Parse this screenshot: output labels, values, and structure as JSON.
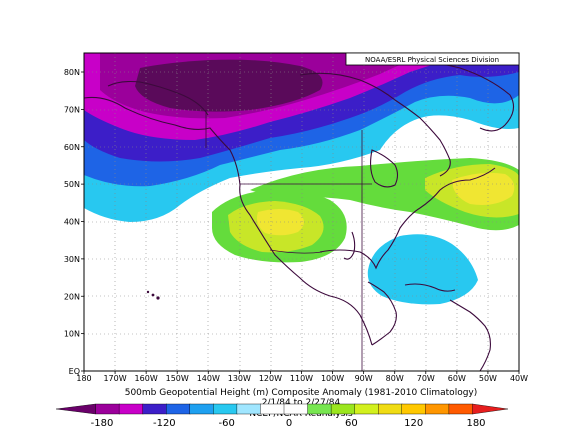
{
  "credit": "NOAA/ESRL Physical Sciences Division",
  "title_line1": "500mb Geopotential Height (m) Composite Anomaly (1981-2010 Climatology)",
  "title_line2": "2/1/84 to 2/27/84",
  "title_line3": "NCEP/NCAR Reanalysis",
  "lat_labels": [
    "80N",
    "70N",
    "60N",
    "50N",
    "40N",
    "30N",
    "20N",
    "10N",
    "EQ"
  ],
  "lon_labels": [
    "180",
    "170W",
    "160W",
    "150W",
    "140W",
    "130W",
    "120W",
    "110W",
    "100W",
    "90W",
    "80W",
    "70W",
    "60W",
    "50W",
    "40W"
  ],
  "colorbar": {
    "labels": [
      "-180",
      "-120",
      "-60",
      "0",
      "60",
      "120",
      "180"
    ],
    "colors": [
      "#6a006a",
      "#9b009b",
      "#c800c8",
      "#3c1ec8",
      "#1e64e6",
      "#1ea0f0",
      "#28c8f0",
      "#a0e6ff",
      "#ffffff",
      "#ffffff",
      "#78e650",
      "#9be61e",
      "#d2f01e",
      "#f0dc14",
      "#ffc800",
      "#ff9600",
      "#ff5a00",
      "#e61e1e"
    ]
  },
  "anomaly_colors": {
    "deep_negative": "#5a0a5a",
    "strong_negative": "#9b009b",
    "negative_magenta": "#c800c8",
    "negative_indigo": "#3c1ec8",
    "negative_blue": "#1e64e6",
    "negative_light": "#28c8f0",
    "neutral": "#ffffff",
    "positive_green": "#64dc3c",
    "positive_yellowgreen": "#c8e628",
    "positive_yellow": "#f0e632"
  }
}
